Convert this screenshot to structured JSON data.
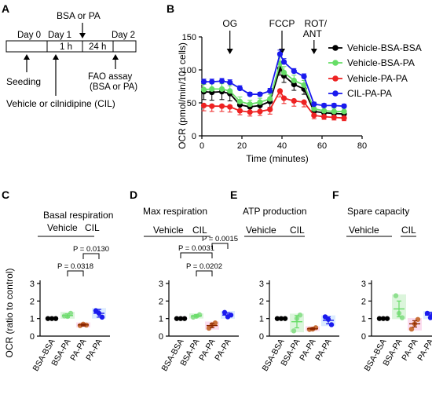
{
  "panels": {
    "A": {
      "label": "A",
      "days": [
        "Day 0",
        "Day 1",
        "Day 2"
      ],
      "segments": [
        "1 h",
        "24 h"
      ],
      "top_annotation": "BSA or PA",
      "seeding": "Seeding",
      "fao": [
        "FAO assay",
        "(BSA or PA)"
      ],
      "treatment": "Vehicle or cilnidipine (CIL)"
    },
    "B": {
      "label": "B"
    },
    "C": {
      "label": "C"
    },
    "D": {
      "label": "D"
    },
    "E": {
      "label": "E"
    },
    "F": {
      "label": "F"
    }
  },
  "colors": {
    "Vehicle-BSA-BSA": "#000000",
    "Vehicle-BSA-PA": "#66dd66",
    "Vehicle-PA-PA": "#ee2222",
    "CIL-PA-PA": "#1a1aee",
    "shade_green": "#dcf5dc",
    "shade_pink": "#fbdcef",
    "shade_blue": "#dcecff",
    "shade_gray": "#e6e6e6",
    "brown_mean": "#8b2500"
  },
  "chart_data": [
    {
      "type": "line",
      "panel": "B",
      "xlabel": "Time (minutes)",
      "ylabel": "OCR (pmol/min/10⁴ cells)",
      "xlim": [
        0,
        80
      ],
      "ylim": [
        0,
        150
      ],
      "xticks": [
        0,
        20,
        40,
        60,
        80
      ],
      "yticks": [
        0,
        50,
        100,
        150
      ],
      "annotations": [
        {
          "text": "OG",
          "x": 14
        },
        {
          "text": "FCCP",
          "x": 40
        },
        {
          "text": "ROT/",
          "text2": "ANT",
          "x": 56
        }
      ],
      "x": [
        1,
        5,
        10,
        14,
        19,
        24,
        29,
        34,
        39,
        41,
        46,
        51,
        56,
        61,
        66,
        71
      ],
      "series": [
        {
          "name": "Vehicle-BSA-BSA",
          "values": [
            67,
            66,
            67,
            64,
            47,
            44,
            46,
            52,
            102,
            91,
            78,
            71,
            37,
            35,
            34,
            33
          ],
          "errors": [
            12,
            12,
            12,
            11,
            8,
            8,
            8,
            9,
            10,
            10,
            9,
            8,
            6,
            5,
            5,
            5
          ]
        },
        {
          "name": "Vehicle-BSA-PA",
          "values": [
            70,
            71,
            71,
            68,
            52,
            48,
            51,
            56,
            110,
            96,
            84,
            77,
            41,
            38,
            37,
            37
          ],
          "errors": [
            8,
            8,
            8,
            8,
            7,
            6,
            6,
            7,
            10,
            9,
            8,
            7,
            5,
            5,
            5,
            5
          ]
        },
        {
          "name": "Vehicle-PA-PA",
          "values": [
            46,
            45,
            45,
            44,
            38,
            36,
            37,
            40,
            68,
            57,
            53,
            51,
            31,
            29,
            28,
            27
          ],
          "errors": [
            8,
            8,
            8,
            8,
            6,
            6,
            6,
            7,
            9,
            8,
            8,
            7,
            5,
            4,
            4,
            4
          ]
        },
        {
          "name": "CIL-PA-PA",
          "values": [
            82,
            82,
            83,
            81,
            72,
            63,
            63,
            68,
            124,
            112,
            98,
            90,
            48,
            46,
            46,
            45
          ],
          "errors": [
            4,
            4,
            4,
            4,
            4,
            3,
            3,
            4,
            6,
            5,
            4,
            4,
            3,
            3,
            3,
            3
          ]
        }
      ]
    },
    {
      "type": "scatter",
      "panel": "C",
      "title": "Basal respiration",
      "ylabel": "OCR (ratio to control)",
      "ylim": [
        0,
        3
      ],
      "yticks": [
        0,
        1,
        2,
        3
      ],
      "group_labels": [
        "Vehicle",
        "CIL"
      ],
      "categories": [
        "BSA-BSA",
        "BSA-PA",
        "PA-PA",
        "PA-PA"
      ],
      "means": [
        1.0,
        1.17,
        0.64,
        1.3
      ],
      "sem": [
        0,
        0.1,
        0.06,
        0.22
      ],
      "points": [
        [
          1.0,
          1.0,
          1.0
        ],
        [
          1.15,
          1.12,
          1.3
        ],
        [
          0.6,
          0.68,
          0.63
        ],
        [
          1.45,
          1.3,
          1.08
        ]
      ],
      "comparisons": [
        {
          "from": 1,
          "to": 2,
          "label": "P = 0.0318"
        },
        {
          "from": 2,
          "to": 3,
          "label": "P = 0.0130"
        }
      ]
    },
    {
      "type": "scatter",
      "panel": "D",
      "title": "Max respiration",
      "ylim": [
        0,
        3
      ],
      "yticks": [
        0,
        1,
        2,
        3
      ],
      "group_labels": [
        "Vehicle",
        "CIL"
      ],
      "categories": [
        "BSA-BSA",
        "BSA-PA",
        "PA-PA",
        "PA-PA"
      ],
      "means": [
        1.0,
        1.15,
        0.6,
        1.2
      ],
      "sem": [
        0,
        0.07,
        0.12,
        0.13
      ],
      "points": [
        [
          1.0,
          1.0,
          1.0
        ],
        [
          1.08,
          1.13,
          1.22
        ],
        [
          0.45,
          0.65,
          0.75
        ],
        [
          1.35,
          1.1,
          1.2
        ]
      ],
      "comparisons": [
        {
          "from": 0,
          "to": 2,
          "label": "P = 0.0031"
        },
        {
          "from": 1,
          "to": 2,
          "label": "P = 0.0202"
        },
        {
          "from": 2,
          "to": 3,
          "label": "P = 0.0015"
        }
      ]
    },
    {
      "type": "scatter",
      "panel": "E",
      "title": "ATP production",
      "ylim": [
        0,
        3
      ],
      "yticks": [
        0,
        1,
        2,
        3
      ],
      "group_labels": [
        "Vehicle",
        "CIL"
      ],
      "categories": [
        "BSA-BSA",
        "BSA-PA",
        "PA-PA",
        "PA-PA"
      ],
      "means": [
        1.0,
        0.82,
        0.42,
        0.9
      ],
      "sem": [
        0,
        0.35,
        0.05,
        0.2
      ],
      "points": [
        [
          1.0,
          1.0,
          1.0
        ],
        [
          0.3,
          1.0,
          1.2
        ],
        [
          0.38,
          0.4,
          0.48
        ],
        [
          1.1,
          0.95,
          0.65
        ]
      ],
      "comparisons": []
    },
    {
      "type": "scatter",
      "panel": "F",
      "title": "Spare capacity",
      "ylim": [
        0,
        3
      ],
      "yticks": [
        0,
        1,
        2,
        3
      ],
      "group_labels": [
        "Vehicle",
        "CIL"
      ],
      "categories": [
        "BSA-BSA",
        "BSA-PA",
        "PA-PA",
        "PA-PA"
      ],
      "means": [
        1.0,
        1.55,
        0.7,
        1.2
      ],
      "sem": [
        0,
        0.45,
        0.18,
        0.15
      ],
      "points": [
        [
          1.0,
          1.0,
          1.0
        ],
        [
          2.3,
          1.3,
          1.05
        ],
        [
          0.4,
          0.7,
          0.95
        ],
        [
          1.3,
          1.05,
          1.25
        ]
      ],
      "comparisons": []
    }
  ]
}
